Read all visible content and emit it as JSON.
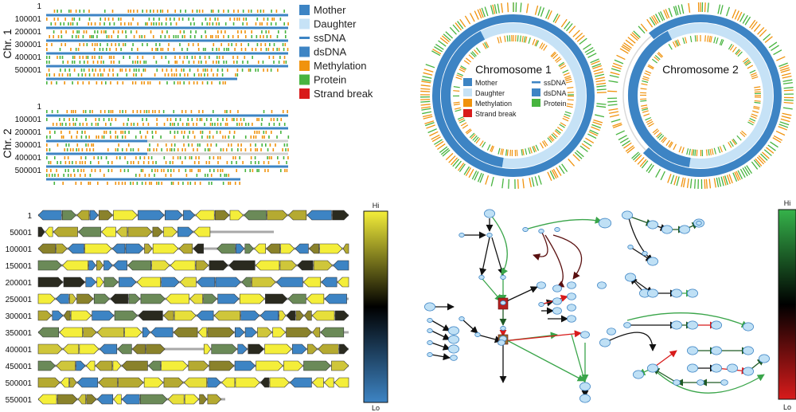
{
  "colors": {
    "mother": "#3d84c4",
    "daughter": "#c6e2f6",
    "ssdna": "#3d84c4",
    "dsdna": "#3d84c4",
    "methylation": "#f0930e",
    "protein": "#47b43f",
    "strand_break": "#d81b1b",
    "gene_hi": "#f4ee3a",
    "gene_lo": "#3d84c4"
  },
  "top_left": {
    "chr1_label": "Chr. 1",
    "chr2_label": "Chr. 2",
    "chr1_ticks": [
      "1",
      "100001",
      "200001",
      "300001",
      "400001",
      "500001"
    ],
    "chr2_ticks": [
      "1",
      "100001",
      "200001",
      "300001",
      "400001",
      "500001"
    ],
    "legend": [
      {
        "key": "mother",
        "label": "Mother",
        "style": "box"
      },
      {
        "key": "daughter",
        "label": "Daughter",
        "style": "box"
      },
      {
        "key": "ssdna",
        "label": "ssDNA",
        "style": "line"
      },
      {
        "key": "dsdna",
        "label": "dsDNA",
        "style": "box"
      },
      {
        "key": "methylation",
        "label": "Methylation",
        "style": "box"
      },
      {
        "key": "protein",
        "label": "Protein",
        "style": "box"
      },
      {
        "key": "strand_break",
        "label": "Strand break",
        "style": "box"
      }
    ]
  },
  "top_right": {
    "chr1_title": "Chromosome 1",
    "chr2_title": "Chromosome 2",
    "legend": [
      {
        "key": "mother",
        "label": "Mother",
        "style": "box"
      },
      {
        "key": "ssdna",
        "label": "ssDNA",
        "style": "line"
      },
      {
        "key": "daughter",
        "label": "Daughter",
        "style": "box"
      },
      {
        "key": "dsdna",
        "label": "dsDNA",
        "style": "box"
      },
      {
        "key": "methylation",
        "label": "Methylation",
        "style": "box"
      },
      {
        "key": "protein",
        "label": "Protein",
        "style": "box"
      },
      {
        "key": "strand_break",
        "label": "Strand break",
        "style": "box"
      }
    ]
  },
  "bottom_left": {
    "ticks": [
      "1",
      "50001",
      "100001",
      "150001",
      "200001",
      "250001",
      "300001",
      "350001",
      "400001",
      "450001",
      "500001",
      "550001"
    ],
    "scale_hi": "Hi",
    "scale_lo": "Lo"
  },
  "bottom_right": {
    "scale_hi": "Hi",
    "scale_lo": "Lo"
  }
}
